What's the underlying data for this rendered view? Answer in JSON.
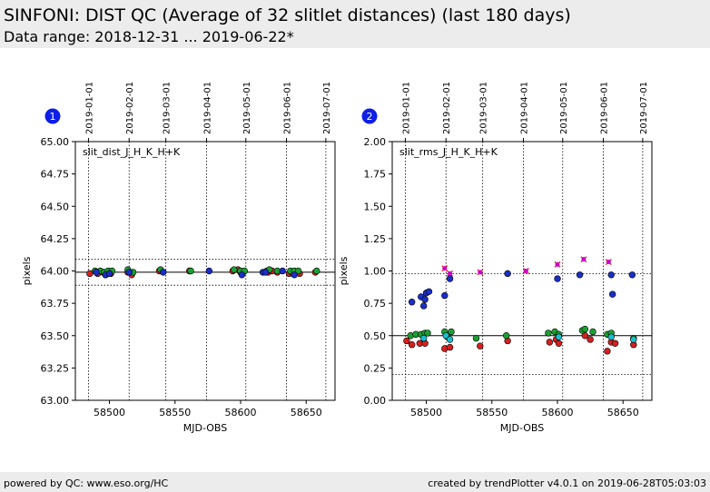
{
  "header": {
    "title": "SINFONI: DIST QC (Average of 32 slitlet distances) (last 180 days)",
    "subtitle": "Data range: 2018-12-31 ... 2019-06-22*"
  },
  "footer": {
    "left": "powered by QC: www.eso.org/HC",
    "right": "created by trendPlotter v4.0.1 on 2019-06-28T05:03:03"
  },
  "colors": {
    "red": "#d62020",
    "green": "#1aa032",
    "blue": "#1a2fc8",
    "cyan": "#17becf",
    "magenta": "#cc00cc"
  },
  "chart_data": [
    {
      "type": "scatter",
      "badge": "1",
      "label": "slit_dist_J_H_K_H+K",
      "ylabel": "pixels",
      "xlabel": "MJD-OBS",
      "xlim": [
        58474,
        58672
      ],
      "ylim": [
        63.0,
        65.0
      ],
      "xticks": [
        58500,
        58550,
        58600,
        58650
      ],
      "yticks": [
        "63.00",
        "63.25",
        "63.50",
        "63.75",
        "64.00",
        "64.25",
        "64.50",
        "64.75",
        "65.00"
      ],
      "date_ticks": [
        {
          "label": "2019-01-01",
          "mjd": 58484
        },
        {
          "label": "2019-02-01",
          "mjd": 58515
        },
        {
          "label": "2019-03-01",
          "mjd": 58543
        },
        {
          "label": "2019-04-01",
          "mjd": 58574
        },
        {
          "label": "2019-05-01",
          "mjd": 58604
        },
        {
          "label": "2019-06-01",
          "mjd": 58635
        },
        {
          "label": "2019-07-01",
          "mjd": 58665
        }
      ],
      "ref_lines": {
        "solid": [
          63.99
        ],
        "dotted": [
          64.09,
          63.89
        ]
      },
      "series": [
        {
          "color": "red",
          "points": [
            [
              58485,
              63.98
            ],
            [
              58491,
              63.98
            ],
            [
              58495,
              63.99
            ],
            [
              58497,
              63.97
            ],
            [
              58499,
              63.98
            ],
            [
              58501,
              63.98
            ],
            [
              58514,
              63.99
            ],
            [
              58517,
              63.97
            ],
            [
              58538,
              64.0
            ],
            [
              58561,
              64.0
            ],
            [
              58594,
              64.0
            ],
            [
              58598,
              64.01
            ],
            [
              58600,
              63.99
            ],
            [
              58602,
              63.99
            ],
            [
              58621,
              63.99
            ],
            [
              58624,
              64.0
            ],
            [
              58628,
              63.99
            ],
            [
              58637,
              63.98
            ],
            [
              58640,
              63.98
            ],
            [
              58643,
              63.99
            ],
            [
              58645,
              63.98
            ],
            [
              58657,
              63.99
            ]
          ]
        },
        {
          "color": "green",
          "points": [
            [
              58489,
              64.0
            ],
            [
              58493,
              64.0
            ],
            [
              58496,
              63.99
            ],
            [
              58499,
              64.0
            ],
            [
              58502,
              64.0
            ],
            [
              58514,
              64.01
            ],
            [
              58518,
              63.99
            ],
            [
              58539,
              64.01
            ],
            [
              58562,
              64.0
            ],
            [
              58595,
              64.01
            ],
            [
              58600,
              64.0
            ],
            [
              58603,
              64.0
            ],
            [
              58620,
              64.0
            ],
            [
              58622,
              64.01
            ],
            [
              58628,
              64.0
            ],
            [
              58638,
              64.0
            ],
            [
              58641,
              64.0
            ],
            [
              58644,
              64.0
            ],
            [
              58658,
              64.0
            ]
          ]
        },
        {
          "color": "blue",
          "points": [
            [
              58490,
              63.99
            ],
            [
              58497,
              63.97
            ],
            [
              58500,
              63.98
            ],
            [
              58515,
              63.99
            ],
            [
              58541,
              63.99
            ],
            [
              58576,
              64.0
            ],
            [
              58601,
              63.97
            ],
            [
              58617,
              63.99
            ],
            [
              58619,
              63.99
            ],
            [
              58632,
              64.0
            ],
            [
              58641,
              63.97
            ]
          ]
        }
      ]
    },
    {
      "type": "scatter",
      "badge": "2",
      "label": "slit_rms_J_H_K_H+K",
      "ylabel": "pixels",
      "xlabel": "MJD-OBS",
      "xlim": [
        58474,
        58672
      ],
      "ylim": [
        0.0,
        2.0
      ],
      "xticks": [
        58500,
        58550,
        58600,
        58650
      ],
      "yticks": [
        "0.00",
        "0.25",
        "0.50",
        "0.75",
        "1.00",
        "1.25",
        "1.50",
        "1.75",
        "2.00"
      ],
      "date_ticks": [
        {
          "label": "2019-01-01",
          "mjd": 58484
        },
        {
          "label": "2019-02-01",
          "mjd": 58515
        },
        {
          "label": "2019-03-01",
          "mjd": 58543
        },
        {
          "label": "2019-04-01",
          "mjd": 58574
        },
        {
          "label": "2019-05-01",
          "mjd": 58604
        },
        {
          "label": "2019-06-01",
          "mjd": 58635
        },
        {
          "label": "2019-07-01",
          "mjd": 58665
        }
      ],
      "ref_lines": {
        "solid": [
          0.5
        ],
        "dotted": [
          0.98,
          0.2
        ]
      },
      "series": [
        {
          "color": "red",
          "points": [
            [
              58485,
              0.46
            ],
            [
              58489,
              0.43
            ],
            [
              58495,
              0.44
            ],
            [
              58499,
              0.44
            ],
            [
              58514,
              0.4
            ],
            [
              58518,
              0.41
            ],
            [
              58541,
              0.42
            ],
            [
              58562,
              0.46
            ],
            [
              58594,
              0.45
            ],
            [
              58599,
              0.47
            ],
            [
              58601,
              0.44
            ],
            [
              58621,
              0.5
            ],
            [
              58625,
              0.47
            ],
            [
              58638,
              0.38
            ],
            [
              58641,
              0.45
            ],
            [
              58644,
              0.44
            ],
            [
              58658,
              0.43
            ]
          ]
        },
        {
          "color": "green",
          "points": [
            [
              58488,
              0.5
            ],
            [
              58492,
              0.51
            ],
            [
              58496,
              0.51
            ],
            [
              58499,
              0.52
            ],
            [
              58501,
              0.52
            ],
            [
              58514,
              0.53
            ],
            [
              58516,
              0.49
            ],
            [
              58519,
              0.53
            ],
            [
              58538,
              0.48
            ],
            [
              58561,
              0.5
            ],
            [
              58593,
              0.52
            ],
            [
              58598,
              0.53
            ],
            [
              58601,
              0.51
            ],
            [
              58619,
              0.54
            ],
            [
              58621,
              0.55
            ],
            [
              58627,
              0.53
            ],
            [
              58638,
              0.51
            ],
            [
              58641,
              0.52
            ],
            [
              58658,
              0.48
            ]
          ]
        },
        {
          "color": "cyan",
          "points": [
            [
              58498,
              0.48
            ],
            [
              58515,
              0.5
            ],
            [
              58518,
              0.47
            ],
            [
              58601,
              0.49
            ],
            [
              58641,
              0.49
            ],
            [
              58658,
              0.47
            ]
          ]
        },
        {
          "color": "blue",
          "points": [
            [
              58489,
              0.76
            ],
            [
              58496,
              0.8
            ],
            [
              58498,
              0.73
            ],
            [
              58499,
              0.78
            ],
            [
              58500,
              0.83
            ],
            [
              58502,
              0.84
            ],
            [
              58514,
              0.81
            ],
            [
              58518,
              0.94
            ],
            [
              58562,
              0.98
            ],
            [
              58600,
              0.94
            ],
            [
              58617,
              0.97
            ],
            [
              58641,
              0.97
            ],
            [
              58642,
              0.82
            ],
            [
              58657,
              0.97
            ]
          ]
        },
        {
          "color": "magenta",
          "marker": "x",
          "points": [
            [
              58514,
              1.02
            ],
            [
              58518,
              0.98
            ],
            [
              58541,
              0.99
            ],
            [
              58576,
              1.0
            ],
            [
              58600,
              1.05
            ],
            [
              58620,
              1.09
            ],
            [
              58639,
              1.07
            ]
          ]
        }
      ]
    }
  ]
}
